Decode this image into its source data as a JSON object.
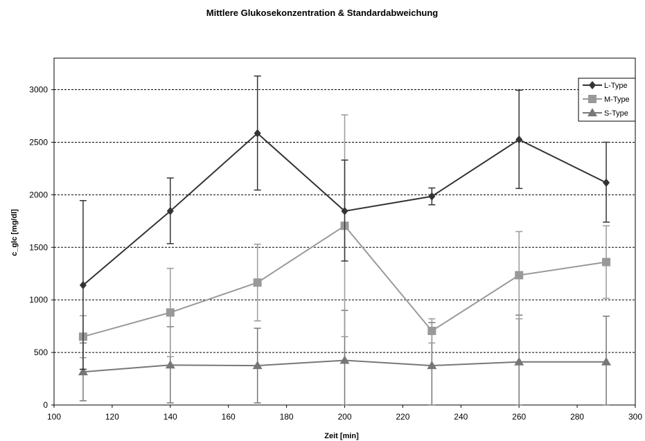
{
  "chart_data": {
    "type": "line",
    "title": "Mittlere Glukosekonzentration & Standardabweichung",
    "xlabel": "Zeit [min]",
    "ylabel": "c_glc [mg/dl]",
    "xlim": [
      100,
      300
    ],
    "ylim": [
      0,
      3300
    ],
    "x_ticks": [
      100,
      120,
      140,
      160,
      180,
      200,
      220,
      240,
      260,
      280,
      300
    ],
    "y_ticks": [
      0,
      500,
      1000,
      1500,
      2000,
      2500,
      3000
    ],
    "grid": "horizontal-dashed",
    "legend_position": "top-right",
    "x": [
      110,
      140,
      170,
      200,
      230,
      260,
      290
    ],
    "series": [
      {
        "name": "L-Type",
        "color": "#333333",
        "marker": "diamond",
        "values": [
          1140,
          1845,
          2585,
          1845,
          1985,
          2525,
          2115
        ],
        "err_low": [
          340,
          1535,
          2045,
          1370,
          1905,
          2060,
          1740
        ],
        "err_high": [
          1945,
          2160,
          3130,
          2330,
          2065,
          2995,
          2500
        ]
      },
      {
        "name": "M-Type",
        "color": "#999999",
        "marker": "square",
        "values": [
          650,
          880,
          1165,
          1705,
          705,
          1235,
          1360
        ],
        "err_low": [
          450,
          460,
          800,
          650,
          590,
          820,
          1015
        ],
        "err_high": [
          850,
          1300,
          1530,
          2760,
          820,
          1650,
          1705
        ]
      },
      {
        "name": "S-Type",
        "color": "#777777",
        "marker": "triangle",
        "values": [
          315,
          380,
          375,
          425,
          375,
          410,
          410
        ],
        "err_low": [
          40,
          20,
          20,
          0,
          0,
          0,
          0
        ],
        "err_high": [
          590,
          745,
          730,
          900,
          785,
          855,
          845
        ]
      }
    ]
  }
}
